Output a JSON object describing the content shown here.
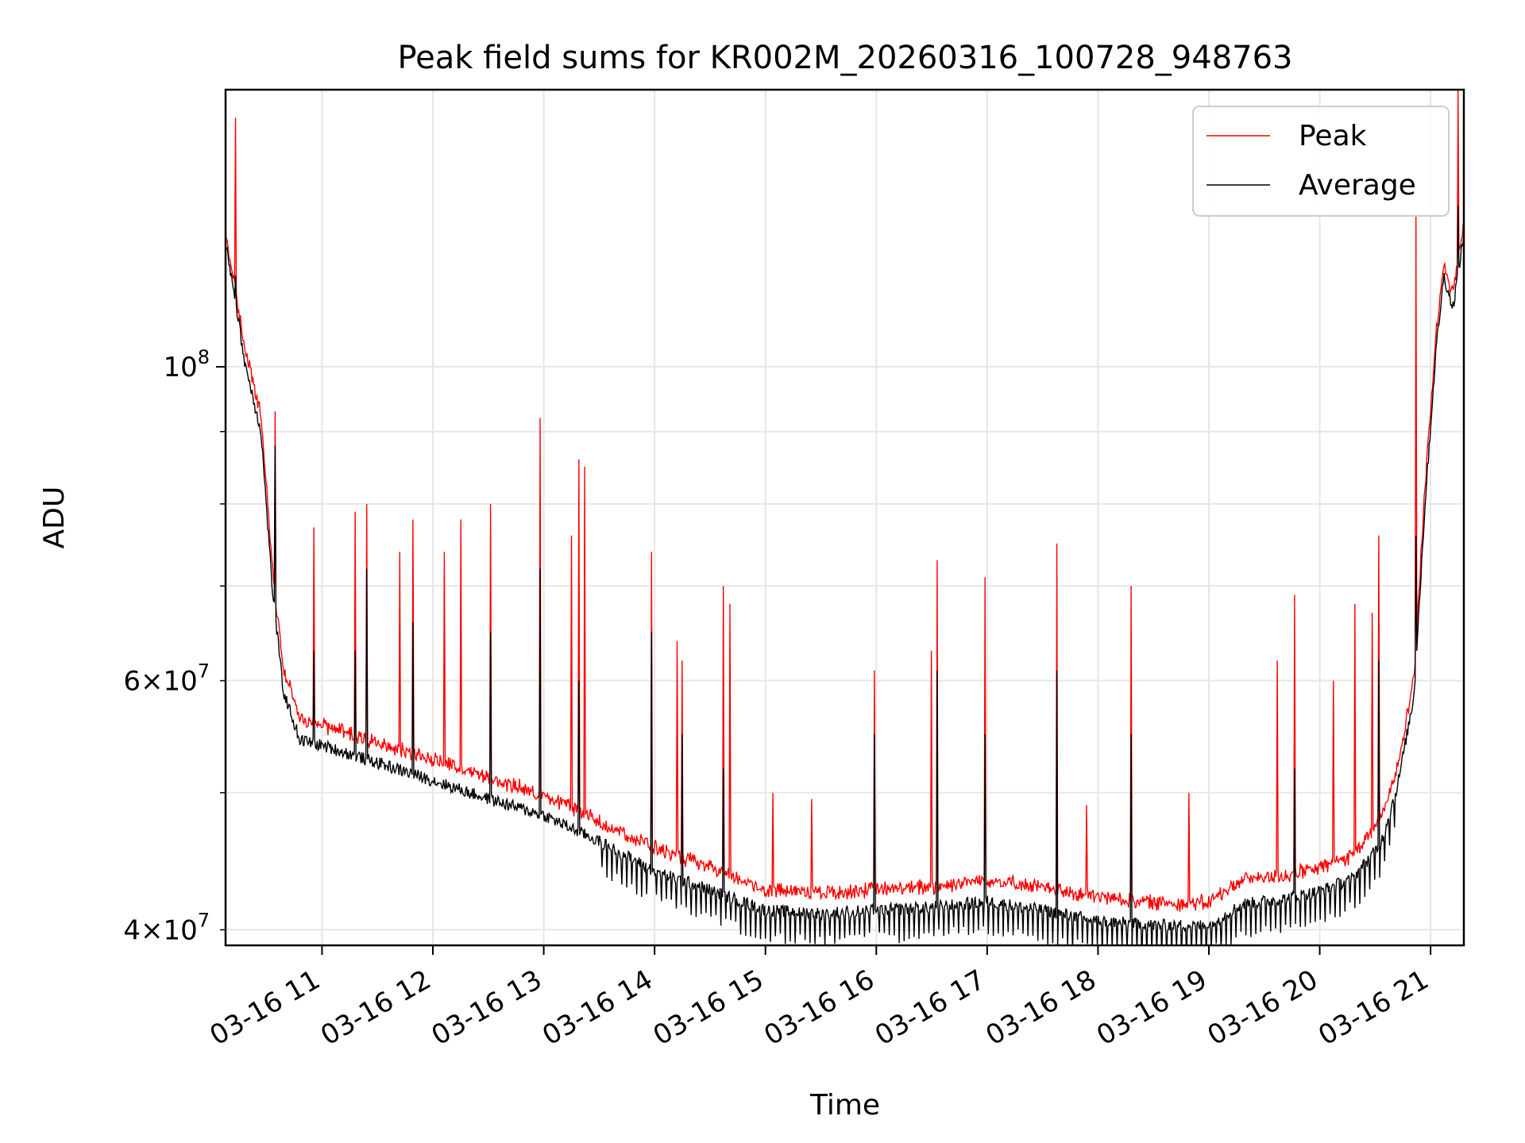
{
  "chart_data": {
    "type": "line",
    "title": "Peak field sums for KR002M_20260316_100728_948763",
    "xlabel": "Time",
    "ylabel": "ADU",
    "yscale": "log",
    "ylim": [
      39000000,
      157000000
    ],
    "xlim_hours": [
      10.13,
      21.3
    ],
    "grid": true,
    "legend": {
      "position": "top-right",
      "entries": [
        "Peak",
        "Average"
      ]
    },
    "x_ticks": [
      {
        "label": "03-16 11",
        "hour": 11
      },
      {
        "label": "03-16 12",
        "hour": 12
      },
      {
        "label": "03-16 13",
        "hour": 13
      },
      {
        "label": "03-16 14",
        "hour": 14
      },
      {
        "label": "03-16 15",
        "hour": 15
      },
      {
        "label": "03-16 16",
        "hour": 16
      },
      {
        "label": "03-16 17",
        "hour": 17
      },
      {
        "label": "03-16 18",
        "hour": 18
      },
      {
        "label": "03-16 19",
        "hour": 19
      },
      {
        "label": "03-16 20",
        "hour": 20
      },
      {
        "label": "03-16 21",
        "hour": 21
      }
    ],
    "y_ticks_major": [
      {
        "base": "10",
        "exp": "8",
        "value": 100000000
      }
    ],
    "y_ticks_minor": [
      {
        "mant": "4",
        "base": "10",
        "exp": "7",
        "value": 40000000
      },
      {
        "mant": "6",
        "base": "10",
        "exp": "7",
        "value": 60000000
      }
    ],
    "y_minor_unlabeled": [
      50000000,
      70000000,
      80000000,
      90000000
    ],
    "series": [
      {
        "name": "Peak",
        "color": "#ff0000",
        "baseline": [
          [
            10.13,
            123000000
          ],
          [
            10.2,
            115000000
          ],
          [
            10.3,
            103000000
          ],
          [
            10.45,
            92000000
          ],
          [
            10.55,
            72000000
          ],
          [
            10.65,
            61000000
          ],
          [
            10.8,
            56000000
          ],
          [
            11.0,
            55500000
          ],
          [
            11.5,
            54000000
          ],
          [
            12.0,
            52500000
          ],
          [
            12.5,
            51000000
          ],
          [
            13.0,
            49500000
          ],
          [
            13.5,
            47500000
          ],
          [
            14.0,
            45500000
          ],
          [
            14.5,
            44000000
          ],
          [
            15.0,
            42500000
          ],
          [
            15.5,
            42300000
          ],
          [
            16.0,
            42500000
          ],
          [
            16.5,
            42700000
          ],
          [
            17.0,
            43200000
          ],
          [
            17.5,
            42600000
          ],
          [
            18.0,
            42000000
          ],
          [
            18.5,
            41600000
          ],
          [
            19.0,
            41600000
          ],
          [
            19.3,
            43200000
          ],
          [
            19.7,
            43500000
          ],
          [
            20.0,
            44000000
          ],
          [
            20.3,
            45000000
          ],
          [
            20.55,
            47500000
          ],
          [
            20.7,
            52000000
          ],
          [
            20.85,
            60000000
          ],
          [
            20.95,
            82000000
          ],
          [
            21.05,
            105000000
          ],
          [
            21.12,
            118000000
          ],
          [
            21.2,
            112000000
          ],
          [
            21.3,
            126000000
          ]
        ],
        "spikes": [
          [
            10.22,
            150000000
          ],
          [
            10.58,
            93000000
          ],
          [
            10.93,
            77000000
          ],
          [
            11.3,
            79000000
          ],
          [
            11.4,
            80000000
          ],
          [
            11.7,
            74000000
          ],
          [
            11.82,
            78000000
          ],
          [
            12.1,
            74000000
          ],
          [
            12.25,
            78000000
          ],
          [
            12.52,
            80000000
          ],
          [
            12.97,
            92000000
          ],
          [
            13.25,
            76000000
          ],
          [
            13.32,
            86000000
          ],
          [
            13.37,
            85000000
          ],
          [
            13.97,
            74000000
          ],
          [
            14.2,
            64000000
          ],
          [
            14.25,
            62000000
          ],
          [
            14.62,
            70000000
          ],
          [
            14.68,
            68000000
          ],
          [
            15.07,
            50000000
          ],
          [
            15.42,
            49500000
          ],
          [
            15.98,
            61000000
          ],
          [
            16.5,
            63000000
          ],
          [
            16.55,
            73000000
          ],
          [
            16.98,
            71000000
          ],
          [
            17.63,
            75000000
          ],
          [
            17.9,
            49000000
          ],
          [
            18.3,
            70000000
          ],
          [
            18.82,
            50000000
          ],
          [
            19.62,
            62000000
          ],
          [
            19.77,
            69000000
          ],
          [
            20.12,
            60000000
          ],
          [
            20.32,
            68000000
          ],
          [
            20.47,
            67000000
          ],
          [
            20.53,
            76000000
          ],
          [
            20.87,
            128000000
          ],
          [
            20.99,
            84000000
          ],
          [
            21.25,
            157000000
          ]
        ]
      },
      {
        "name": "Average",
        "color": "#000000",
        "baseline": [
          [
            10.13,
            122000000
          ],
          [
            10.2,
            114000000
          ],
          [
            10.3,
            101000000
          ],
          [
            10.45,
            90000000
          ],
          [
            10.55,
            70000000
          ],
          [
            10.65,
            59000000
          ],
          [
            10.8,
            54500000
          ],
          [
            11.0,
            54000000
          ],
          [
            11.5,
            52500000
          ],
          [
            12.0,
            51000000
          ],
          [
            12.5,
            49500000
          ],
          [
            13.0,
            48200000
          ],
          [
            13.5,
            46200000
          ],
          [
            14.0,
            44000000
          ],
          [
            14.5,
            42700000
          ],
          [
            15.0,
            41300000
          ],
          [
            15.5,
            41100000
          ],
          [
            16.0,
            41300000
          ],
          [
            16.5,
            41500000
          ],
          [
            17.0,
            41900000
          ],
          [
            17.5,
            41300000
          ],
          [
            18.0,
            40600000
          ],
          [
            18.5,
            40300000
          ],
          [
            19.0,
            40300000
          ],
          [
            19.3,
            41700000
          ],
          [
            19.7,
            42100000
          ],
          [
            20.0,
            42600000
          ],
          [
            20.3,
            43500000
          ],
          [
            20.55,
            46000000
          ],
          [
            20.7,
            50500000
          ],
          [
            20.85,
            58500000
          ],
          [
            20.95,
            80000000
          ],
          [
            21.05,
            103000000
          ],
          [
            21.12,
            116000000
          ],
          [
            21.2,
            110000000
          ],
          [
            21.3,
            124000000
          ]
        ],
        "spikes": [
          [
            10.22,
            116000000
          ],
          [
            10.58,
            88000000
          ],
          [
            10.93,
            63000000
          ],
          [
            11.3,
            63000000
          ],
          [
            11.4,
            72000000
          ],
          [
            11.82,
            66000000
          ],
          [
            12.52,
            65000000
          ],
          [
            12.97,
            72000000
          ],
          [
            13.32,
            60000000
          ],
          [
            13.97,
            65000000
          ],
          [
            14.25,
            55000000
          ],
          [
            14.62,
            52000000
          ],
          [
            15.98,
            55000000
          ],
          [
            16.55,
            61000000
          ],
          [
            16.98,
            55000000
          ],
          [
            17.63,
            61000000
          ],
          [
            18.3,
            55000000
          ],
          [
            19.77,
            52000000
          ],
          [
            20.53,
            62000000
          ],
          [
            20.87,
            76000000
          ],
          [
            21.25,
            130000000
          ]
        ]
      }
    ]
  }
}
